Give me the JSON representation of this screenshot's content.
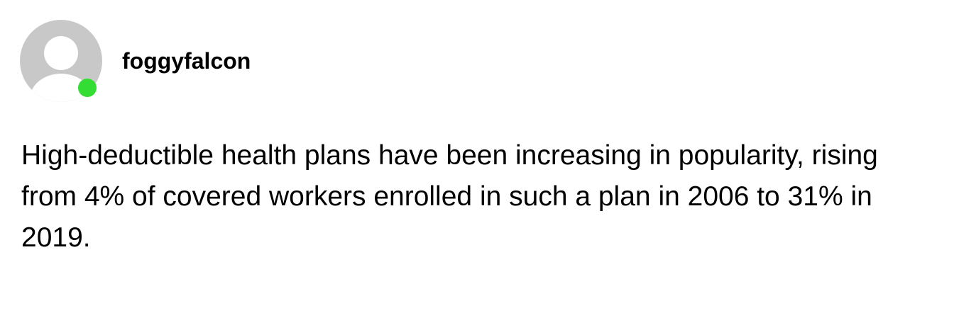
{
  "post": {
    "author": {
      "username": "foggyfalcon",
      "status": "online",
      "status_color": "#33dd33",
      "avatar_icon": "default-user-avatar-icon"
    },
    "text": "High-deductible health plans have been increasing in popularity, rising from 4% of covered workers enrolled in such a plan in 2006 to 31% in 2019."
  }
}
